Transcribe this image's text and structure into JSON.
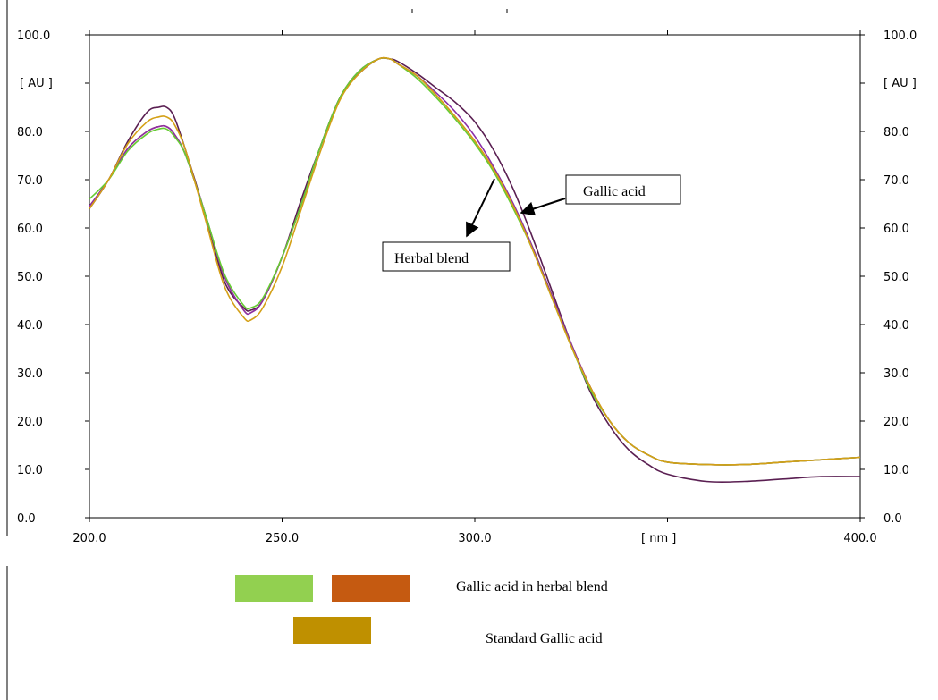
{
  "chart_data": {
    "type": "line",
    "x_unit_label": "[ nm ]",
    "y_unit_label": "[ AU ]",
    "xlim": [
      200,
      400
    ],
    "ylim": [
      0,
      100
    ],
    "x_ticks": [
      "200.0",
      "250.0",
      "300.0",
      "400.0"
    ],
    "y_ticks": [
      "0.0",
      "10.0",
      "20.0",
      "30.0",
      "40.0",
      "50.0",
      "60.0",
      "70.0",
      "80.0",
      "100.0"
    ],
    "grid": false,
    "series": [
      {
        "color": "#5a1f52",
        "x": [
          200,
          205,
          210,
          215,
          218,
          220,
          222,
          225,
          230,
          235,
          240,
          242,
          245,
          250,
          255,
          260,
          265,
          270,
          275,
          278,
          280,
          285,
          290,
          295,
          300,
          305,
          310,
          315,
          320,
          325,
          330,
          335,
          340,
          345,
          350,
          360,
          370,
          380,
          390,
          400
        ],
        "y": [
          64,
          70,
          78,
          84,
          85,
          85,
          83,
          76,
          63,
          49,
          43.5,
          43,
          45,
          54,
          66,
          77,
          87,
          92,
          95,
          95,
          94.5,
          92,
          89,
          86,
          82,
          76,
          68,
          58,
          47,
          36,
          26,
          19,
          14,
          11,
          9,
          7.5,
          7.5,
          8,
          8.5,
          8.5
        ]
      },
      {
        "color": "#c85a17",
        "x": [
          200,
          205,
          210,
          215,
          218,
          220,
          222,
          225,
          230,
          235,
          240,
          242,
          245,
          250,
          255,
          260,
          265,
          270,
          275,
          278,
          280,
          285,
          290,
          295,
          300,
          305,
          310,
          315,
          320,
          325,
          330,
          335,
          340,
          345,
          350,
          360,
          370,
          380,
          390,
          400
        ],
        "y": [
          64.5,
          70,
          76.5,
          80,
          81,
          81,
          79.5,
          75,
          63,
          50,
          43,
          42.5,
          45,
          54,
          65,
          77,
          87,
          92.5,
          95,
          95,
          94,
          91.5,
          87.5,
          83,
          78,
          72,
          64.5,
          56,
          46,
          36,
          27,
          20,
          15.5,
          13,
          11.5,
          11,
          11,
          11.5,
          12,
          12.5
        ]
      },
      {
        "color": "#8b2fa8",
        "x": [
          200,
          205,
          210,
          215,
          218,
          220,
          222,
          225,
          230,
          235,
          240,
          242,
          245,
          250,
          255,
          260,
          265,
          270,
          275,
          278,
          280,
          285,
          290,
          295,
          300,
          305,
          310,
          315,
          320,
          325,
          330,
          335,
          340,
          345,
          350,
          360,
          370,
          380,
          390,
          400
        ],
        "y": [
          64.5,
          70,
          76.5,
          80,
          81,
          81,
          79.5,
          75,
          63,
          50,
          43,
          42.5,
          45,
          54,
          65,
          77,
          87,
          92.5,
          95,
          95,
          94,
          91.5,
          88,
          84,
          79,
          72.5,
          65,
          56,
          46,
          36,
          27,
          20,
          15.5,
          13,
          11.5,
          11,
          11,
          11.5,
          12,
          12.5
        ]
      },
      {
        "color": "#66cc33",
        "x": [
          200,
          205,
          210,
          215,
          218,
          220,
          222,
          225,
          230,
          235,
          240,
          242,
          245,
          250,
          255,
          260,
          265,
          270,
          275,
          278,
          280,
          285,
          290,
          295,
          300,
          305,
          310,
          315,
          320,
          325,
          330,
          335,
          340,
          345,
          350,
          360,
          370,
          380,
          390,
          400
        ],
        "y": [
          66,
          70,
          76,
          79.5,
          80.5,
          80.5,
          79,
          75,
          63,
          50.5,
          44,
          43.5,
          45.5,
          54,
          65,
          77,
          87,
          92.5,
          95,
          95,
          94,
          91,
          87,
          82.5,
          77.5,
          71.5,
          64,
          55.5,
          45.5,
          35.5,
          26.5,
          20,
          15.5,
          13,
          11.5,
          11,
          11,
          11.5,
          12,
          12.5
        ]
      },
      {
        "color": "#d4a017",
        "x": [
          200,
          205,
          210,
          215,
          218,
          220,
          222,
          225,
          230,
          235,
          240,
          242,
          245,
          250,
          255,
          260,
          265,
          270,
          275,
          278,
          280,
          285,
          290,
          295,
          300,
          305,
          310,
          315,
          320,
          325,
          330,
          335,
          340,
          345,
          350,
          360,
          370,
          380,
          390,
          400
        ],
        "y": [
          64,
          70,
          77.5,
          82,
          83,
          83,
          81.5,
          76,
          62,
          48,
          41.5,
          41,
          43.5,
          52,
          64,
          76,
          86.5,
          92,
          95,
          95,
          94,
          91.5,
          87.5,
          83,
          78,
          72,
          64.5,
          55.5,
          45.5,
          35.5,
          27,
          20,
          15.5,
          13,
          11.5,
          11,
          11,
          11.5,
          12,
          12.5
        ]
      }
    ],
    "annotations": [
      {
        "text": "Gallic acid",
        "target": {
          "x": 310,
          "y": 63.5
        }
      },
      {
        "text": "Herbal blend",
        "target": {
          "x": 306,
          "y": 70.5
        }
      }
    ],
    "legend": [
      {
        "label": "Gallic acid in herbal blend",
        "colors": [
          "#92d050",
          "#c55a11"
        ]
      },
      {
        "label": "Standard Gallic acid",
        "colors": [
          "#bf9000"
        ]
      }
    ]
  }
}
